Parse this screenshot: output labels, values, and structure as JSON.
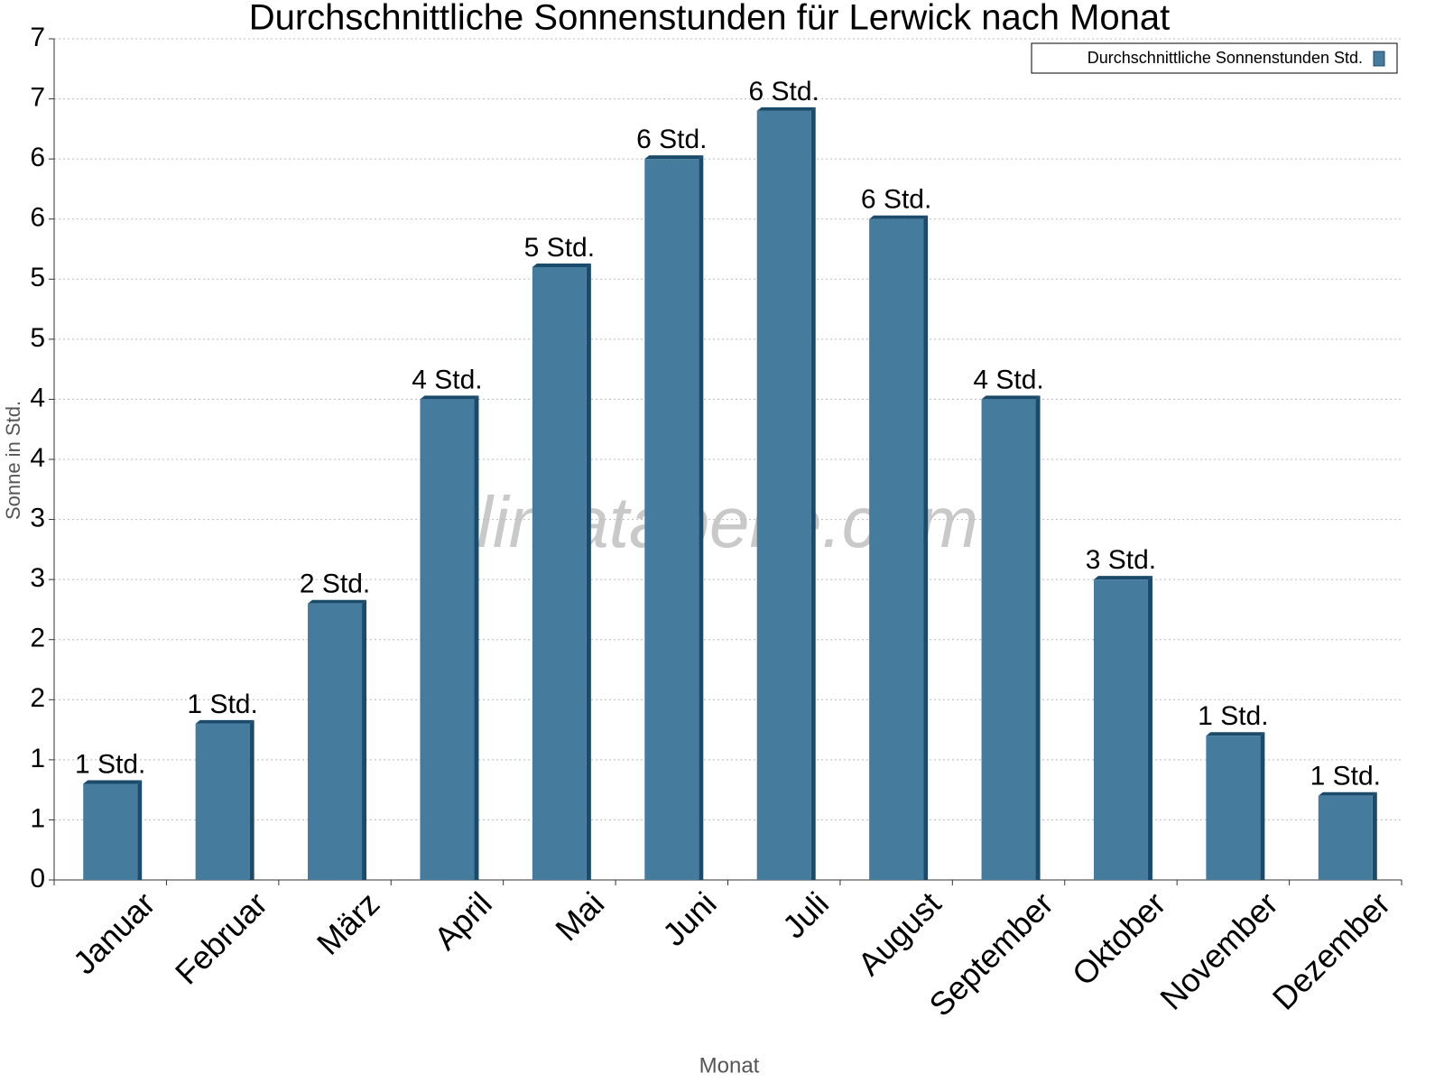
{
  "chart_data": {
    "type": "bar",
    "title": "Durchschnittliche Sonnenstunden für Lerwick nach Monat",
    "x_label": "Monat",
    "y_label": "Sonne in Std.",
    "watermark": "klimatabelle.com",
    "categories": [
      "Januar",
      "Februar",
      "März",
      "April",
      "Mai",
      "Juni",
      "Juli",
      "August",
      "September",
      "Oktober",
      "November",
      "Dezember"
    ],
    "series": [
      {
        "name": "Durchschnittliche Sonnenstunden Std.",
        "color": "#457b9d",
        "values": [
          0.8,
          1.3,
          2.3,
          4.0,
          5.1,
          6.0,
          6.4,
          5.5,
          4.0,
          2.5,
          1.2,
          0.7
        ],
        "value_labels": [
          "1 Std.",
          "1 Std.",
          "2 Std.",
          "4 Std.",
          "5 Std.",
          "6 Std.",
          "6 Std.",
          "6 Std.",
          "4 Std.",
          "3 Std.",
          "1 Std.",
          "1 Std."
        ]
      }
    ],
    "ylim": [
      0,
      7
    ],
    "yticks": [
      0,
      {
        "value": 0.5,
        "label": "1"
      },
      1,
      {
        "value": 1.5,
        "label": "2"
      },
      2,
      {
        "value": 2.5,
        "label": "3"
      },
      3,
      {
        "value": 3.5,
        "label": "4"
      },
      4,
      {
        "value": 4.5,
        "label": "5"
      },
      5,
      {
        "value": 5.5,
        "label": "6"
      },
      6,
      {
        "value": 6.5,
        "label": "7"
      },
      7
    ],
    "grid": true,
    "legend": "top-right"
  }
}
